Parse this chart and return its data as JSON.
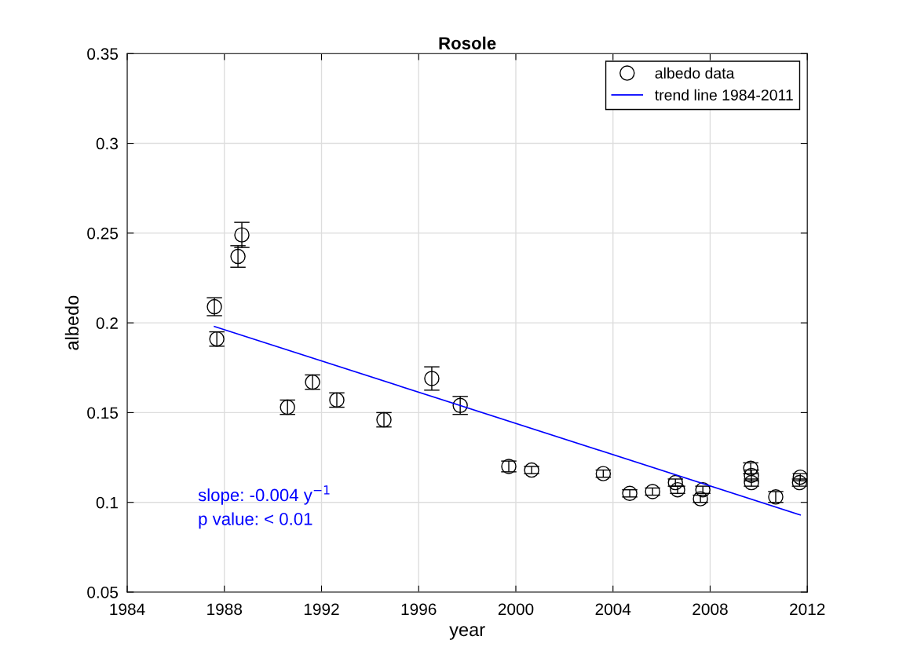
{
  "chart_data": {
    "type": "scatter",
    "title": "Rosole",
    "xlabel": "year",
    "ylabel": "albedo",
    "xlim": [
      1984,
      2012
    ],
    "xticks": [
      1984,
      1988,
      1992,
      1996,
      2000,
      2004,
      2008,
      2012
    ],
    "ylim": [
      0.05,
      0.35
    ],
    "yticks": [
      0.05,
      0.1,
      0.15,
      0.2,
      0.25,
      0.3,
      0.35
    ],
    "grid": true,
    "legend": "top right",
    "annotations": [
      "slope: -0.004 y$^{−1}$",
      "p value: < 0.01"
    ],
    "series": [
      {
        "name": "albedo data",
        "color": "#000000",
        "marker": "circle",
        "x": [
          1987.59,
          1987.69,
          1988.56,
          1988.72,
          1990.6,
          1991.63,
          1992.63,
          1994.57,
          1996.54,
          1997.71,
          1999.71,
          2000.65,
          2003.6,
          2004.69,
          2005.63,
          2006.57,
          2006.66,
          2007.6,
          2007.7,
          2009.67,
          2009.7,
          2009.7,
          2010.7,
          2011.71,
          2011.68
        ],
        "values": [
          0.209,
          0.191,
          0.237,
          0.249,
          0.153,
          0.167,
          0.157,
          0.146,
          0.169,
          0.154,
          0.12,
          0.118,
          0.116,
          0.105,
          0.106,
          0.111,
          0.107,
          0.102,
          0.107,
          0.119,
          0.115,
          0.111,
          0.103,
          0.114,
          0.111
        ],
        "errors": [
          0.005,
          0.004,
          0.006,
          0.007,
          0.004,
          0.004,
          0.004,
          0.004,
          0.0065,
          0.005,
          0.003,
          0.002,
          0.002,
          0.002,
          0.002,
          0.002,
          0.002,
          0.002,
          0.002,
          0.003,
          0.003,
          0.002,
          0.003,
          0.002,
          0.002
        ]
      },
      {
        "name": "trend line 1984-2011",
        "type": "line",
        "color": "#0000ff",
        "line_style": "solid",
        "marker": "none",
        "x": [
          1987.59,
          2011.71
        ],
        "values": [
          0.198,
          0.093
        ]
      }
    ]
  }
}
